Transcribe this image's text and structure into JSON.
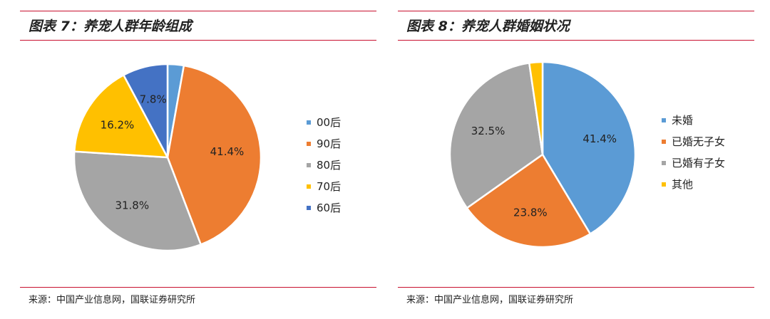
{
  "charts": [
    {
      "title": "图表 7：养宠人群年龄组成",
      "source": "来源：中国产业信息网，国联证券研究所"
    },
    {
      "title": "图表 8：养宠人群婚姻状况",
      "source": "来源：中国产业信息网，国联证券研究所"
    }
  ],
  "chart_data": [
    {
      "type": "pie",
      "title": "图表 7：养宠人群年龄组成",
      "legend": "right",
      "slices": [
        {
          "label": "00后",
          "value": 2.8,
          "color": "#5b9bd5",
          "data_label": ""
        },
        {
          "label": "90后",
          "value": 41.4,
          "color": "#ed7d31",
          "data_label": "41.4%"
        },
        {
          "label": "80后",
          "value": 31.8,
          "color": "#a5a5a5",
          "data_label": "31.8%"
        },
        {
          "label": "70后",
          "value": 16.2,
          "color": "#ffc000",
          "data_label": "16.2%"
        },
        {
          "label": "60后",
          "value": 7.8,
          "color": "#4472c4",
          "data_label": "7.8%"
        }
      ]
    },
    {
      "type": "pie",
      "title": "图表 8：养宠人群婚姻状况",
      "legend": "right",
      "slices": [
        {
          "label": "未婚",
          "value": 41.4,
          "color": "#5b9bd5",
          "data_label": "41.4%"
        },
        {
          "label": "已婚无子女",
          "value": 23.8,
          "color": "#ed7d31",
          "data_label": "23.8%"
        },
        {
          "label": "已婚有子女",
          "value": 32.5,
          "color": "#a5a5a5",
          "data_label": "32.5%"
        },
        {
          "label": "其他",
          "value": 2.3,
          "color": "#ffc000",
          "data_label": ""
        }
      ]
    }
  ]
}
